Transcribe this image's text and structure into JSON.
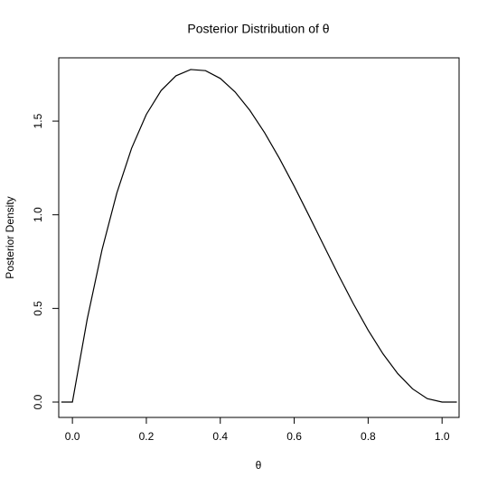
{
  "chart_data": {
    "type": "line",
    "title": "Posterior Distribution of θ",
    "xlabel": "θ",
    "ylabel": "Posterior Density",
    "x": [
      -0.03,
      0,
      0.04,
      0.08,
      0.12,
      0.16,
      0.2,
      0.24,
      0.28,
      0.32,
      0.36,
      0.4,
      0.44,
      0.48,
      0.52,
      0.56,
      0.6,
      0.64,
      0.68,
      0.72,
      0.76,
      0.8,
      0.84,
      0.88,
      0.92,
      0.96,
      1.0,
      1.04
    ],
    "series": [
      {
        "name": "Posterior Density",
        "color": "#000000",
        "values": [
          0,
          0,
          0.4424,
          0.8125,
          1.1151,
          1.3548,
          1.536,
          1.6635,
          1.7418,
          1.7756,
          1.7695,
          1.728,
          1.6558,
          1.5575,
          1.4377,
          1.301,
          1.152,
          0.9953,
          0.8356,
          0.6774,
          0.5253,
          0.384,
          0.258,
          0.1521,
          0.0707,
          0.0184,
          0,
          0
        ]
      }
    ],
    "xlim": [
      -0.037,
      1.046
    ],
    "ylim": [
      -0.082,
      1.838
    ],
    "xticks": [
      {
        "value": 0,
        "label": "0.0"
      },
      0.2,
      0.4,
      0.6,
      0.8,
      {
        "value": 1,
        "label": "1.0"
      }
    ],
    "yticks": [
      {
        "value": 0,
        "label": "0.0"
      },
      0.5,
      {
        "value": 1,
        "label": "1.0"
      },
      1.5
    ],
    "grid": false
  }
}
